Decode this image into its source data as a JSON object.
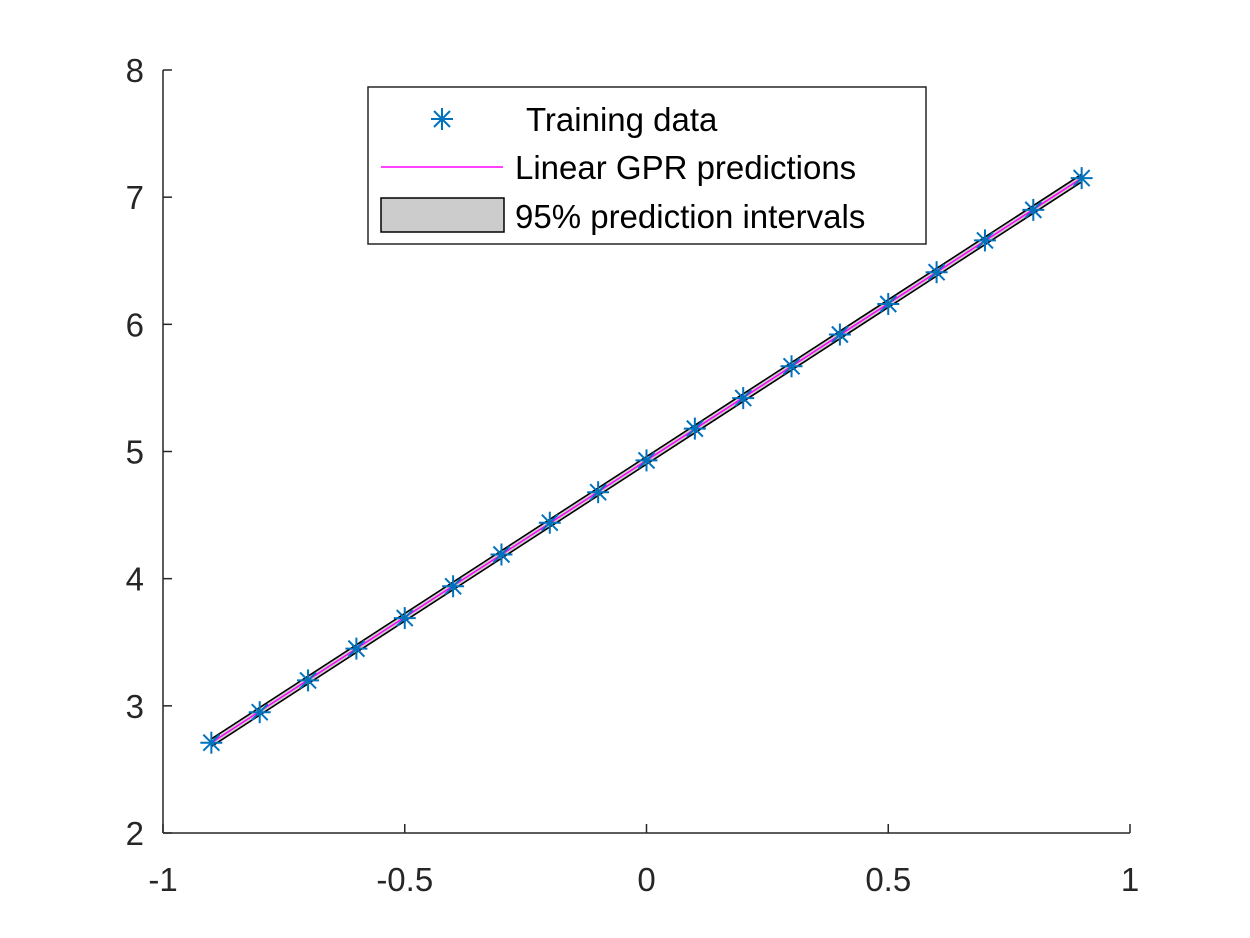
{
  "chart_data": {
    "type": "line",
    "title": "",
    "xlabel": "",
    "ylabel": "",
    "xlim": [
      -1,
      1
    ],
    "ylim": [
      2,
      8
    ],
    "x_ticks": [
      -1,
      -0.5,
      0,
      0.5,
      1
    ],
    "x_tick_labels": [
      "-1",
      "-0.5",
      "0",
      "0.5",
      "1"
    ],
    "y_ticks": [
      2,
      3,
      4,
      5,
      6,
      7,
      8
    ],
    "y_tick_labels": [
      "2",
      "3",
      "4",
      "5",
      "6",
      "7",
      "8"
    ],
    "grid": false,
    "legend_position": "top-center",
    "series": [
      {
        "name": "Training data",
        "kind": "scatter",
        "marker": "asterisk",
        "color": "#0072BD",
        "x": [
          -0.9,
          -0.8,
          -0.7,
          -0.6,
          -0.5,
          -0.4,
          -0.3,
          -0.2,
          -0.1,
          0,
          0.1,
          0.2,
          0.3,
          0.4,
          0.5,
          0.6,
          0.7,
          0.8,
          0.9
        ],
        "y": [
          2.71,
          2.95,
          3.2,
          3.45,
          3.69,
          3.94,
          4.19,
          4.44,
          4.68,
          4.93,
          5.18,
          5.42,
          5.67,
          5.92,
          6.16,
          6.41,
          6.66,
          6.9,
          7.15
        ]
      },
      {
        "name": "Linear GPR predictions",
        "kind": "line",
        "color": "#FF00FF",
        "x": [
          -0.9,
          0.9
        ],
        "y": [
          2.71,
          7.15
        ]
      },
      {
        "name": "95% prediction intervals",
        "kind": "band",
        "fill": "#CCCCCC",
        "edge": "#000000",
        "x": [
          -0.9,
          0.9
        ],
        "lower": [
          2.68,
          7.12
        ],
        "upper": [
          2.74,
          7.18
        ]
      }
    ]
  },
  "legend": {
    "training_label": "Training data",
    "prediction_label": "Linear GPR predictions",
    "interval_label": "95% prediction intervals"
  }
}
